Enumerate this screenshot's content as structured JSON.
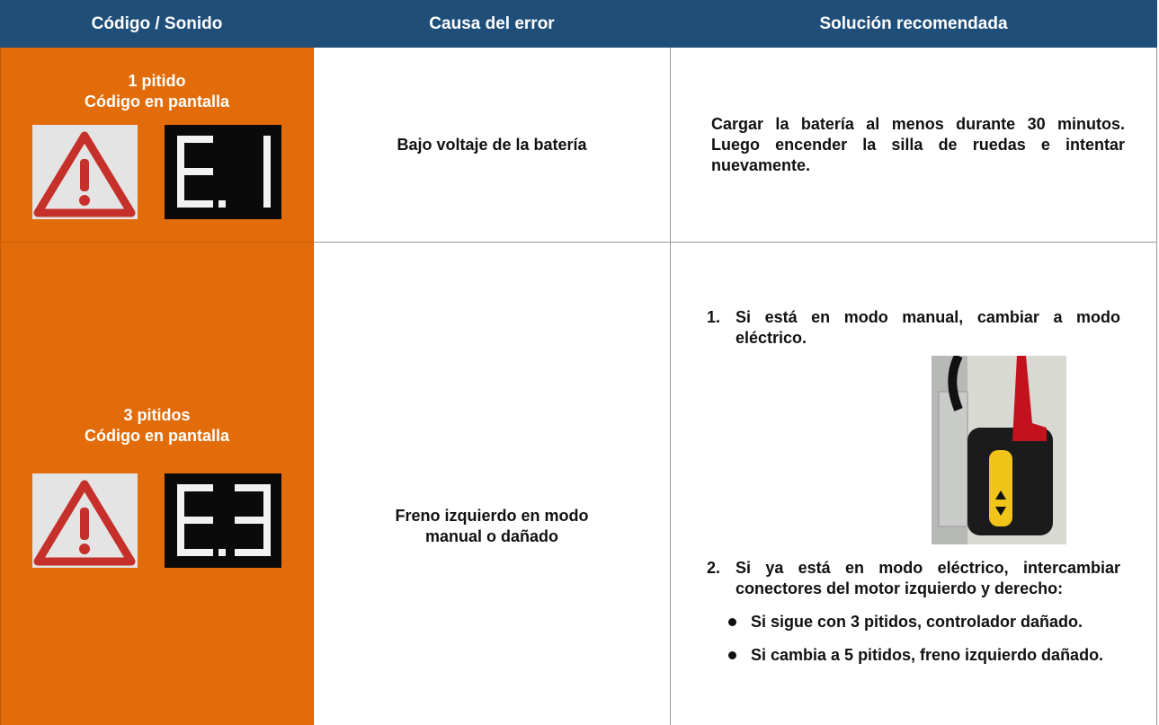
{
  "table": {
    "header": [
      "Código / Sonido",
      "Causa del error",
      "Solución recomendada"
    ],
    "rows": [
      {
        "code": [
          "1 pitido",
          "Código en pantalla"
        ],
        "cause": "Bajo voltaje de la batería",
        "solution": "Cargar la batería al menos durante 30 minutos. Luego encender la silla de ruedas e intentar nuevamente."
      },
      {
        "code": [
          "3 pitidos",
          "Código en pantalla"
        ],
        "cause": "Freno izquierdo en modo manual o dañado",
        "steps": [
          {
            "num": "1.",
            "text": "Si está en modo manual, cambiar a modo eléctrico."
          },
          {
            "num": "2.",
            "text": "Si ya está en modo eléctrico, intercambiar conectores del motor izquierdo y derecho:"
          }
        ],
        "bullets": [
          "Si sigue con 3 pitidos, controlador dañado.",
          "Si cambia a 5 pitidos, freno izquierdo dañado."
        ]
      }
    ]
  }
}
